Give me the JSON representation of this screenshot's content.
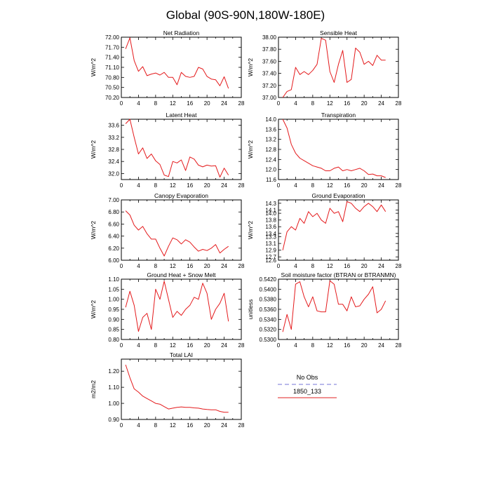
{
  "page": {
    "title": "Global (90S-90N,180W-180E)"
  },
  "legend": {
    "items": [
      {
        "label": "No Obs",
        "color": "#8f8fdf",
        "dash": true
      },
      {
        "label": "1850_133",
        "color": "#e02020",
        "dash": false
      }
    ]
  },
  "colors": {
    "series": "#e41a1c",
    "axis": "#000000"
  },
  "chart_data": [
    {
      "type": "line",
      "title": "Net Radiation",
      "ylabel": "W/m^2",
      "xlim": [
        0,
        28
      ],
      "xticks": [
        0,
        4,
        8,
        12,
        16,
        20,
        24,
        28
      ],
      "ylim": [
        70.2,
        72.0
      ],
      "yticks": [
        "70.20",
        "70.50",
        "70.80",
        "71.10",
        "71.40",
        "71.70",
        "72.00"
      ],
      "x": [
        1,
        2,
        3,
        4,
        5,
        6,
        7,
        8,
        9,
        10,
        11,
        12,
        13,
        14,
        15,
        16,
        17,
        18,
        19,
        20,
        21,
        22,
        23,
        24,
        25
      ],
      "series": [
        {
          "values": [
            71.65,
            71.98,
            71.3,
            70.98,
            71.12,
            70.85,
            70.9,
            70.93,
            70.87,
            70.95,
            70.8,
            70.8,
            70.58,
            70.95,
            70.83,
            70.8,
            70.83,
            71.1,
            71.05,
            70.83,
            70.75,
            70.73,
            70.55,
            70.82,
            70.47
          ]
        }
      ]
    },
    {
      "type": "line",
      "title": "Sensible Heat",
      "ylabel": "W/m^2",
      "xlim": [
        0,
        28
      ],
      "xticks": [
        0,
        4,
        8,
        12,
        16,
        20,
        24,
        28
      ],
      "ylim": [
        37.0,
        38.0
      ],
      "yticks": [
        "37.00",
        "37.20",
        "37.40",
        "37.60",
        "37.80",
        "38.00"
      ],
      "x": [
        1,
        2,
        3,
        4,
        5,
        6,
        7,
        8,
        9,
        10,
        11,
        12,
        13,
        14,
        15,
        16,
        17,
        18,
        19,
        20,
        21,
        22,
        23,
        24,
        25
      ],
      "series": [
        {
          "values": [
            37.0,
            37.1,
            37.13,
            37.5,
            37.38,
            37.43,
            37.38,
            37.45,
            37.55,
            37.98,
            37.95,
            37.43,
            37.25,
            37.55,
            37.78,
            37.25,
            37.3,
            37.82,
            37.75,
            37.55,
            37.6,
            37.53,
            37.7,
            37.62,
            37.62
          ]
        }
      ]
    },
    {
      "type": "line",
      "title": "Latent Heat",
      "ylabel": "W/m^2",
      "xlim": [
        0,
        28
      ],
      "xticks": [
        0,
        4,
        8,
        12,
        16,
        20,
        24,
        28
      ],
      "ylim": [
        31.8,
        33.8
      ],
      "yticks": [
        "32.0",
        "32.4",
        "32.8",
        "33.2",
        "33.6"
      ],
      "x": [
        1,
        2,
        3,
        4,
        5,
        6,
        7,
        8,
        9,
        10,
        11,
        12,
        13,
        14,
        15,
        16,
        17,
        18,
        19,
        20,
        21,
        22,
        23,
        24,
        25
      ],
      "series": [
        {
          "values": [
            33.65,
            33.8,
            33.2,
            32.65,
            32.85,
            32.5,
            32.65,
            32.42,
            32.3,
            31.95,
            31.9,
            32.4,
            32.35,
            32.45,
            32.1,
            32.55,
            32.48,
            32.28,
            32.22,
            32.28,
            32.25,
            32.26,
            31.88,
            32.18,
            31.95
          ]
        }
      ]
    },
    {
      "type": "line",
      "title": "Transpiration",
      "ylabel": "W/m^2",
      "xlim": [
        0,
        28
      ],
      "xticks": [
        0,
        4,
        8,
        12,
        16,
        20,
        24,
        28
      ],
      "ylim": [
        11.6,
        14.0
      ],
      "yticks": [
        "11.6",
        "12.0",
        "12.4",
        "12.8",
        "13.2",
        "13.6",
        "14.0"
      ],
      "x": [
        1,
        2,
        3,
        4,
        5,
        6,
        7,
        8,
        9,
        10,
        11,
        12,
        13,
        14,
        15,
        16,
        17,
        18,
        19,
        20,
        21,
        22,
        23,
        24,
        25
      ],
      "series": [
        {
          "values": [
            14.0,
            13.65,
            13.0,
            12.65,
            12.45,
            12.35,
            12.25,
            12.15,
            12.1,
            12.05,
            11.95,
            11.95,
            12.05,
            12.1,
            11.95,
            12.0,
            11.95,
            12.0,
            12.05,
            11.95,
            11.8,
            11.82,
            11.75,
            11.75,
            11.68
          ]
        }
      ]
    },
    {
      "type": "line",
      "title": "Canopy Evaporation",
      "ylabel": "W/m^2",
      "xlim": [
        0,
        28
      ],
      "xticks": [
        0,
        4,
        8,
        12,
        16,
        20,
        24,
        28
      ],
      "ylim": [
        6.0,
        7.0
      ],
      "yticks": [
        "6.00",
        "6.20",
        "6.40",
        "6.60",
        "6.80",
        "7.00"
      ],
      "x": [
        1,
        2,
        3,
        4,
        5,
        6,
        7,
        8,
        9,
        10,
        11,
        12,
        13,
        14,
        15,
        16,
        17,
        18,
        19,
        20,
        21,
        22,
        23,
        24,
        25
      ],
      "series": [
        {
          "values": [
            6.82,
            6.75,
            6.58,
            6.5,
            6.56,
            6.44,
            6.35,
            6.35,
            6.2,
            6.07,
            6.23,
            6.37,
            6.34,
            6.27,
            6.34,
            6.3,
            6.22,
            6.15,
            6.18,
            6.16,
            6.2,
            6.26,
            6.12,
            6.18,
            6.23
          ]
        }
      ]
    },
    {
      "type": "line",
      "title": "Ground Evaporation",
      "ylabel": "W/m^2",
      "xlim": [
        0,
        28
      ],
      "xticks": [
        0,
        4,
        8,
        12,
        16,
        20,
        24,
        28
      ],
      "ylim": [
        12.6,
        14.4
      ],
      "yticks": [
        "12.6",
        "12.7",
        "12.9",
        "13.1",
        "13.3",
        "13.4",
        "13.6",
        "13.8",
        "14.0",
        "14.1",
        "14.3"
      ],
      "x": [
        1,
        2,
        3,
        4,
        5,
        6,
        7,
        8,
        9,
        10,
        11,
        12,
        13,
        14,
        15,
        16,
        17,
        18,
        19,
        20,
        21,
        22,
        23,
        24,
        25
      ],
      "series": [
        {
          "values": [
            12.9,
            13.45,
            13.6,
            13.5,
            13.85,
            13.7,
            14.05,
            13.9,
            14.0,
            13.8,
            13.7,
            14.15,
            14.0,
            14.05,
            13.75,
            14.35,
            14.3,
            14.15,
            14.05,
            14.2,
            14.3,
            14.2,
            14.05,
            14.25,
            14.05
          ]
        }
      ]
    },
    {
      "type": "line",
      "title": "Ground Heat + Snow Melt",
      "ylabel": "W/m^2",
      "xlim": [
        0,
        28
      ],
      "xticks": [
        0,
        4,
        8,
        12,
        16,
        20,
        24,
        28
      ],
      "ylim": [
        0.8,
        1.1
      ],
      "yticks": [
        "0.80",
        "0.85",
        "0.90",
        "0.95",
        "1.00",
        "1.05",
        "1.10"
      ],
      "x": [
        1,
        2,
        3,
        4,
        5,
        6,
        7,
        8,
        9,
        10,
        11,
        12,
        13,
        14,
        15,
        16,
        17,
        18,
        19,
        20,
        21,
        22,
        23,
        24,
        25
      ],
      "series": [
        {
          "values": [
            0.96,
            1.04,
            0.97,
            0.84,
            0.91,
            0.93,
            0.85,
            1.05,
            1.0,
            1.09,
            1.0,
            0.91,
            0.94,
            0.92,
            0.95,
            0.97,
            1.01,
            1.0,
            1.08,
            1.03,
            0.9,
            0.95,
            0.98,
            1.03,
            0.89
          ]
        }
      ]
    },
    {
      "type": "line",
      "title": "Soil moisture factor (BTRAN or BTRANMN)",
      "ylabel": "unitless",
      "xlim": [
        0,
        28
      ],
      "xticks": [
        0,
        4,
        8,
        12,
        16,
        20,
        24,
        28
      ],
      "ylim": [
        0.53,
        0.542
      ],
      "yticks": [
        "0.5300",
        "0.5320",
        "0.5340",
        "0.5360",
        "0.5380",
        "0.5400",
        "0.5420"
      ],
      "x": [
        1,
        2,
        3,
        4,
        5,
        6,
        7,
        8,
        9,
        10,
        11,
        12,
        13,
        14,
        15,
        16,
        17,
        18,
        19,
        20,
        21,
        22,
        23,
        24,
        25
      ],
      "series": [
        {
          "values": [
            0.5315,
            0.535,
            0.532,
            0.541,
            0.5415,
            0.5385,
            0.5365,
            0.5385,
            0.5357,
            0.5355,
            0.5355,
            0.5417,
            0.541,
            0.537,
            0.537,
            0.5357,
            0.5385,
            0.5365,
            0.5367,
            0.538,
            0.539,
            0.5405,
            0.5353,
            0.536,
            0.5377
          ]
        }
      ]
    },
    {
      "type": "line",
      "title": "Total LAI",
      "ylabel": "m2/m2",
      "xlim": [
        0,
        28
      ],
      "xticks": [
        0,
        4,
        8,
        12,
        16,
        20,
        24,
        28
      ],
      "ylim": [
        0.9,
        1.275
      ],
      "yticks": [
        "0.90",
        "1.00",
        "1.10",
        "1.20"
      ],
      "x": [
        1,
        2,
        3,
        4,
        5,
        6,
        7,
        8,
        9,
        10,
        11,
        12,
        13,
        14,
        15,
        16,
        17,
        18,
        19,
        20,
        21,
        22,
        23,
        24,
        25
      ],
      "series": [
        {
          "values": [
            1.24,
            1.16,
            1.09,
            1.07,
            1.045,
            1.03,
            1.015,
            1.0,
            0.995,
            0.98,
            0.965,
            0.97,
            0.975,
            0.978,
            0.975,
            0.975,
            0.972,
            0.97,
            0.965,
            0.962,
            0.96,
            0.96,
            0.95,
            0.945,
            0.945
          ]
        }
      ]
    }
  ]
}
